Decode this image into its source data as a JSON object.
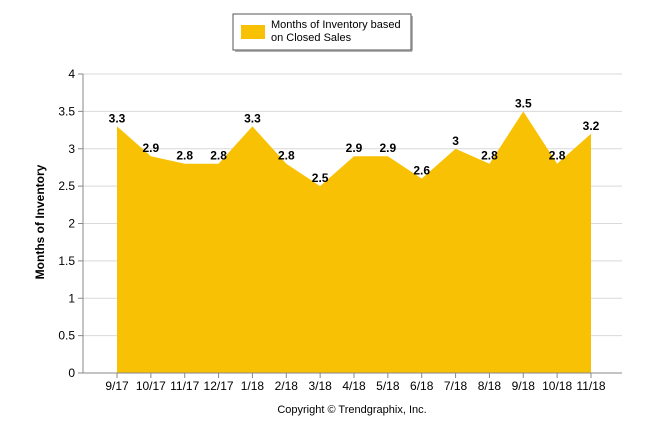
{
  "chart_data": {
    "type": "area",
    "ylabel": "Months of Inventory",
    "xlabel": "",
    "title": "",
    "ylim": [
      0,
      4
    ],
    "yticks": [
      "0",
      "0.5",
      "1",
      "1.5",
      "2",
      "2.5",
      "3",
      "3.5",
      "4"
    ],
    "categories": [
      "9/17",
      "10/17",
      "11/17",
      "12/17",
      "1/18",
      "2/18",
      "3/18",
      "4/18",
      "5/18",
      "6/18",
      "7/18",
      "8/18",
      "9/18",
      "10/18",
      "11/18"
    ],
    "series": [
      {
        "name": "Months of Inventory based on Closed Sales",
        "legend_lines": [
          "Months of Inventory based",
          "on Closed Sales"
        ],
        "values": [
          3.3,
          2.9,
          2.8,
          2.8,
          3.3,
          2.8,
          2.5,
          2.9,
          2.9,
          2.6,
          3.0,
          2.8,
          3.5,
          2.8,
          3.2
        ],
        "labels": [
          "3.3",
          "2.9",
          "2.8",
          "2.8",
          "3.3",
          "2.8",
          "2.5",
          "2.9",
          "2.9",
          "2.6",
          "3",
          "2.8",
          "3.5",
          "2.8",
          "3.2"
        ],
        "color": "#F8C103"
      }
    ],
    "grid": true,
    "legend_position": "top-center",
    "footer": "Copyright © Trendgraphix, Inc."
  }
}
